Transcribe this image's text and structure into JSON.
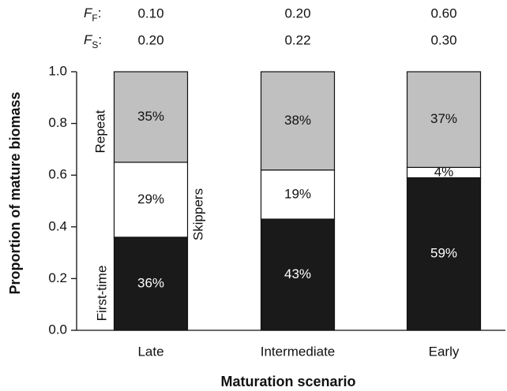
{
  "chart_data": {
    "type": "stacked-bar",
    "x_label": "Maturation scenario",
    "y_label": "Proportion of mature biomass",
    "categories": [
      "Late",
      "Intermediate",
      "Early"
    ],
    "series": [
      {
        "name": "First-time",
        "color": "#1a1a1a",
        "values": [
          0.36,
          0.43,
          0.59
        ],
        "value_labels": [
          "36%",
          "43%",
          "59%"
        ]
      },
      {
        "name": "Skippers",
        "color": "#ffffff",
        "values": [
          0.29,
          0.19,
          0.04
        ],
        "value_labels": [
          "29%",
          "19%",
          "4%"
        ]
      },
      {
        "name": "Repeat",
        "color": "#c0c0c0",
        "values": [
          0.35,
          0.38,
          0.37
        ],
        "value_labels": [
          "35%",
          "38%",
          "37%"
        ]
      }
    ],
    "ylim": [
      0,
      1
    ],
    "yticks": [
      {
        "value": 0,
        "label": "0.0"
      },
      0.2,
      0.4,
      0.6,
      0.8,
      {
        "value": 1,
        "label": "1.0"
      }
    ],
    "parameters": [
      {
        "symbol": "F",
        "subscript": "F",
        "suffix": ":",
        "values": [
          "0.10",
          "0.20",
          "0.60"
        ]
      },
      {
        "symbol": "F",
        "subscript": "S",
        "suffix": ":",
        "values": [
          "0.20",
          "0.22",
          "0.30"
        ]
      }
    ]
  }
}
